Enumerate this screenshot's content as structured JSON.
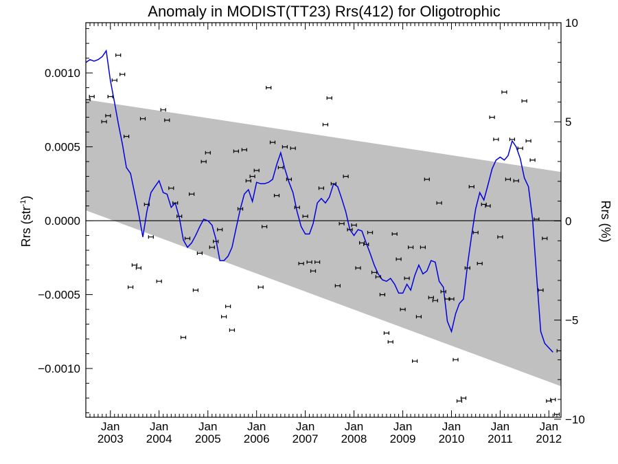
{
  "chart_data": {
    "type": "line",
    "title": "Anomaly in MODIST(TT23) Rrs(412) for Oligotrophic",
    "ylabel": "Rrs (str",
    "ylabel_sup": "-1",
    "ylabel_suffix": ")",
    "ylabel_right": "Rrs (%)",
    "xlabel": "",
    "xlim": [
      "2002-07-01",
      "2012-04-01"
    ],
    "ylim": [
      -0.00133,
      0.00134
    ],
    "ylim_right": [
      -9.9,
      10.0
    ],
    "yticks_left": [
      {
        "value": 0.001,
        "label": "0.0010"
      },
      {
        "value": 0.0005,
        "label": "0.0005"
      },
      {
        "value": 0.0,
        "label": "0.0000"
      },
      {
        "value": -0.0005,
        "label": "−0.0005"
      },
      {
        "value": -0.001,
        "label": "−0.0010"
      }
    ],
    "yticks_right": [
      {
        "value": 10,
        "label": "10"
      },
      {
        "value": 5,
        "label": "5"
      },
      {
        "value": 0,
        "label": "0"
      },
      {
        "value": -5,
        "label": "−5"
      },
      {
        "value": -10,
        "label": "−10"
      }
    ],
    "xticks": [
      {
        "value": "2003-01-01",
        "month": "Jan",
        "year": "2003"
      },
      {
        "value": "2004-01-01",
        "month": "Jan",
        "year": "2004"
      },
      {
        "value": "2005-01-01",
        "month": "Jan",
        "year": "2005"
      },
      {
        "value": "2006-01-01",
        "month": "Jan",
        "year": "2006"
      },
      {
        "value": "2007-01-01",
        "month": "Jan",
        "year": "2007"
      },
      {
        "value": "2008-01-01",
        "month": "Jan",
        "year": "2008"
      },
      {
        "value": "2009-01-01",
        "month": "Jan",
        "year": "2009"
      },
      {
        "value": "2010-01-01",
        "month": "Jan",
        "year": "2010"
      },
      {
        "value": "2011-01-01",
        "month": "Jan",
        "year": "2011"
      },
      {
        "value": "2012-01-01",
        "month": "Jan",
        "year": "2012"
      }
    ],
    "band": {
      "color": "#c0c0c0",
      "start": {
        "x": "2002-07-01",
        "upper": 0.00082,
        "lower": 7e-05
      },
      "end": {
        "x": "2012-04-01",
        "upper": 0.00033,
        "lower": -0.00112
      }
    },
    "zero_line": 0.0,
    "line_color": "#0000dd",
    "marker_color": "#000000",
    "series": [
      {
        "values": [
          [
            "2002-07-01",
            0.00107
          ],
          [
            "2002-08-01",
            0.00109
          ],
          [
            "2002-09-01",
            0.00108
          ],
          [
            "2002-10-01",
            0.00109
          ],
          [
            "2002-11-01",
            0.00111
          ],
          [
            "2002-12-01",
            0.00115
          ],
          [
            "2003-01-01",
            0.00095
          ],
          [
            "2003-02-01",
            0.0008
          ],
          [
            "2003-03-01",
            0.00066
          ],
          [
            "2003-04-01",
            0.00052
          ],
          [
            "2003-05-01",
            0.00036
          ],
          [
            "2003-06-01",
            0.00032
          ],
          [
            "2003-07-01",
            0.00019
          ],
          [
            "2003-08-01",
            5e-05
          ],
          [
            "2003-09-01",
            -0.00011
          ],
          [
            "2003-10-01",
            6e-05
          ],
          [
            "2003-11-01",
            0.00019
          ],
          [
            "2003-12-01",
            0.00023
          ],
          [
            "2004-01-01",
            0.00027
          ],
          [
            "2004-02-01",
            0.00019
          ],
          [
            "2004-03-01",
            0.00018
          ],
          [
            "2004-04-01",
            9e-05
          ],
          [
            "2004-05-01",
            0.00012
          ],
          [
            "2004-06-01",
            2e-05
          ],
          [
            "2004-07-01",
            -0.00013
          ],
          [
            "2004-08-01",
            -0.00018
          ],
          [
            "2004-09-01",
            -0.00015
          ],
          [
            "2004-10-01",
            -0.0001
          ],
          [
            "2004-11-01",
            -4e-05
          ],
          [
            "2004-12-01",
            1e-05
          ],
          [
            "2005-01-01",
            0.0
          ],
          [
            "2005-02-01",
            -3e-05
          ],
          [
            "2005-03-01",
            -0.00012
          ],
          [
            "2005-04-01",
            -0.00027
          ],
          [
            "2005-05-01",
            -0.00027
          ],
          [
            "2005-06-01",
            -0.00024
          ],
          [
            "2005-07-01",
            -0.00018
          ],
          [
            "2005-08-01",
            -5e-05
          ],
          [
            "2005-09-01",
            8e-05
          ],
          [
            "2005-10-01",
            0.00018
          ],
          [
            "2005-11-01",
            0.00021
          ],
          [
            "2005-12-01",
            0.00013
          ],
          [
            "2006-01-01",
            0.00026
          ],
          [
            "2006-02-01",
            0.00025
          ],
          [
            "2006-03-01",
            0.00025
          ],
          [
            "2006-04-01",
            0.00026
          ],
          [
            "2006-05-01",
            0.00028
          ],
          [
            "2006-06-01",
            0.00038
          ],
          [
            "2006-07-01",
            0.00046
          ],
          [
            "2006-08-01",
            0.00035
          ],
          [
            "2006-09-01",
            0.00026
          ],
          [
            "2006-10-01",
            0.00019
          ],
          [
            "2006-11-01",
            6e-05
          ],
          [
            "2006-12-01",
            -4e-05
          ],
          [
            "2007-01-01",
            -9e-05
          ],
          [
            "2007-02-01",
            -9e-05
          ],
          [
            "2007-03-01",
            -2e-05
          ],
          [
            "2007-04-01",
            0.00012
          ],
          [
            "2007-05-01",
            0.00015
          ],
          [
            "2007-06-01",
            0.00012
          ],
          [
            "2007-07-01",
            0.00016
          ],
          [
            "2007-08-01",
            0.00025
          ],
          [
            "2007-09-01",
            0.00023
          ],
          [
            "2007-10-01",
            0.00015
          ],
          [
            "2007-11-01",
            6e-05
          ],
          [
            "2007-12-01",
            -6e-05
          ],
          [
            "2008-01-01",
            -0.0001
          ],
          [
            "2008-02-01",
            -6e-05
          ],
          [
            "2008-03-01",
            -7e-05
          ],
          [
            "2008-04-01",
            -0.00015
          ],
          [
            "2008-05-01",
            -0.00022
          ],
          [
            "2008-06-01",
            -0.0003
          ],
          [
            "2008-07-01",
            -0.00036
          ],
          [
            "2008-08-01",
            -0.0004
          ],
          [
            "2008-09-01",
            -0.00041
          ],
          [
            "2008-10-01",
            -0.00039
          ],
          [
            "2008-11-01",
            -0.00043
          ],
          [
            "2008-12-01",
            -0.00049
          ],
          [
            "2009-01-01",
            -0.00049
          ],
          [
            "2009-02-01",
            -0.00043
          ],
          [
            "2009-03-01",
            -0.00047
          ],
          [
            "2009-04-01",
            -0.00037
          ],
          [
            "2009-05-01",
            -0.0003
          ],
          [
            "2009-06-01",
            -0.00036
          ],
          [
            "2009-07-01",
            -0.00034
          ],
          [
            "2009-08-01",
            -0.00027
          ],
          [
            "2009-09-01",
            -0.00028
          ],
          [
            "2009-10-01",
            -0.00041
          ],
          [
            "2009-11-01",
            -0.00045
          ],
          [
            "2009-12-01",
            -0.00068
          ],
          [
            "2010-01-01",
            -0.00075
          ],
          [
            "2010-02-01",
            -0.00063
          ],
          [
            "2010-03-01",
            -0.00056
          ],
          [
            "2010-04-01",
            -0.00053
          ],
          [
            "2010-05-01",
            -0.0003
          ],
          [
            "2010-06-01",
            -0.0001
          ],
          [
            "2010-07-01",
            8e-05
          ],
          [
            "2010-08-01",
            0.00019
          ],
          [
            "2010-09-01",
            0.00014
          ],
          [
            "2010-10-01",
            0.00024
          ],
          [
            "2010-11-01",
            0.00035
          ],
          [
            "2010-12-01",
            0.00041
          ],
          [
            "2011-01-01",
            0.00043
          ],
          [
            "2011-02-01",
            0.00041
          ],
          [
            "2011-03-01",
            0.00044
          ],
          [
            "2011-04-01",
            0.00054
          ],
          [
            "2011-05-01",
            0.0005
          ],
          [
            "2011-06-01",
            0.00042
          ],
          [
            "2011-07-01",
            0.00029
          ],
          [
            "2011-08-01",
            0.00023
          ],
          [
            "2011-09-01",
            1e-05
          ],
          [
            "2011-10-01",
            -0.00037
          ],
          [
            "2011-11-01",
            -0.00075
          ],
          [
            "2011-12-01",
            -0.00083
          ],
          [
            "2012-01-01",
            -0.00086
          ],
          [
            "2012-02-01",
            -0.00089
          ]
        ]
      },
      {
        "type": "scatter",
        "error_bars": true,
        "values": [
          [
            "2002-07-15",
            0.00082
          ],
          [
            "2002-08-15",
            0.00084
          ],
          [
            "2002-11-15",
            0.00067
          ],
          [
            "2002-12-15",
            0.00071
          ],
          [
            "2003-01-01",
            0.00084
          ],
          [
            "2003-02-01",
            0.00095
          ],
          [
            "2003-03-01",
            0.00112
          ],
          [
            "2003-04-01",
            0.00099
          ],
          [
            "2003-05-01",
            0.00057
          ],
          [
            "2003-06-01",
            -0.00045
          ],
          [
            "2003-07-01",
            -0.0003
          ],
          [
            "2003-08-01",
            -0.00032
          ],
          [
            "2003-09-01",
            0.00069
          ],
          [
            "2003-10-01",
            0.00011
          ],
          [
            "2003-11-01",
            -0.00011
          ],
          [
            "2004-01-01",
            -0.00041
          ],
          [
            "2004-02-01",
            0.00075
          ],
          [
            "2004-03-01",
            0.00068
          ],
          [
            "2004-04-01",
            0.00022
          ],
          [
            "2004-05-01",
            0.00012
          ],
          [
            "2004-06-01",
            3e-05
          ],
          [
            "2004-07-01",
            -0.00079
          ],
          [
            "2004-08-01",
            -0.00012
          ],
          [
            "2004-09-01",
            0.00018
          ],
          [
            "2004-10-01",
            -0.00047
          ],
          [
            "2004-11-01",
            -0.00022
          ],
          [
            "2004-12-01",
            0.0004
          ],
          [
            "2005-01-01",
            0.00046
          ],
          [
            "2005-02-01",
            -0.00018
          ],
          [
            "2005-03-01",
            -0.00014
          ],
          [
            "2005-04-01",
            -6e-05
          ],
          [
            "2005-05-01",
            -0.00065
          ],
          [
            "2005-06-01",
            -0.00058
          ],
          [
            "2005-07-01",
            -0.00074
          ],
          [
            "2005-08-01",
            0.00047
          ],
          [
            "2005-09-01",
            8e-05
          ],
          [
            "2005-10-01",
            0.00048
          ],
          [
            "2005-11-01",
            0.00027
          ],
          [
            "2005-12-01",
            0.0003
          ],
          [
            "2006-01-01",
            0.00034
          ],
          [
            "2006-02-01",
            -0.00045
          ],
          [
            "2006-03-01",
            -4e-05
          ],
          [
            "2006-04-01",
            0.0009
          ],
          [
            "2006-05-01",
            0.00053
          ],
          [
            "2006-06-01",
            0.00017
          ],
          [
            "2006-07-01",
            0.00036
          ],
          [
            "2006-08-01",
            0.0005
          ],
          [
            "2006-09-01",
            0.00028
          ],
          [
            "2006-10-01",
            0.00049
          ],
          [
            "2006-11-01",
            9e-05
          ],
          [
            "2006-12-01",
            -0.00029
          ],
          [
            "2007-01-01",
            3e-05
          ],
          [
            "2007-02-01",
            -0.00028
          ],
          [
            "2007-03-01",
            -0.00034
          ],
          [
            "2007-04-01",
            -0.00028
          ],
          [
            "2007-05-01",
            0.00022
          ],
          [
            "2007-06-01",
            0.00065
          ],
          [
            "2007-07-01",
            0.00083
          ],
          [
            "2007-08-01",
            0.00025
          ],
          [
            "2007-09-01",
            -0.00044
          ],
          [
            "2007-10-01",
            -2e-05
          ],
          [
            "2007-11-01",
            0.0003
          ],
          [
            "2007-12-01",
            -6e-05
          ],
          [
            "2008-01-01",
            -3e-05
          ],
          [
            "2008-02-01",
            -0.00032
          ],
          [
            "2008-03-01",
            -0.00015
          ],
          [
            "2008-04-01",
            -0.00016
          ],
          [
            "2008-05-01",
            -8e-05
          ],
          [
            "2008-06-01",
            -0.00035
          ],
          [
            "2008-07-01",
            -0.00038
          ],
          [
            "2008-08-01",
            -0.0005
          ],
          [
            "2008-09-01",
            -0.00076
          ],
          [
            "2008-10-01",
            -0.00082
          ],
          [
            "2008-11-01",
            -9e-05
          ],
          [
            "2008-12-01",
            -0.00026
          ],
          [
            "2009-01-01",
            -0.0006
          ],
          [
            "2009-02-01",
            -0.00039
          ],
          [
            "2009-03-01",
            -0.00018
          ],
          [
            "2009-04-01",
            -0.00095
          ],
          [
            "2009-05-01",
            -0.00065
          ],
          [
            "2009-06-01",
            -0.00018
          ],
          [
            "2009-07-01",
            0.00028
          ],
          [
            "2009-08-01",
            -0.00052
          ],
          [
            "2009-09-01",
            -0.00054
          ],
          [
            "2009-10-01",
            0.00012
          ],
          [
            "2009-11-01",
            -0.00048
          ],
          [
            "2009-12-01",
            -0.00053
          ],
          [
            "2010-01-01",
            -0.00053
          ],
          [
            "2010-02-01",
            -0.00094
          ],
          [
            "2010-03-01",
            -0.00122
          ],
          [
            "2010-04-01",
            -0.0012
          ],
          [
            "2010-05-01",
            -0.00032
          ],
          [
            "2010-06-01",
            0.00023
          ],
          [
            "2010-07-01",
            -8e-05
          ],
          [
            "2010-08-01",
            -0.00029
          ],
          [
            "2010-09-01",
            0.00011
          ],
          [
            "2010-10-01",
            0.0001
          ],
          [
            "2010-11-01",
            0.0007
          ],
          [
            "2010-12-01",
            0.00055
          ],
          [
            "2011-01-01",
            -0.00011
          ],
          [
            "2011-02-01",
            0.00087
          ],
          [
            "2011-03-01",
            0.00028
          ],
          [
            "2011-04-01",
            0.00055
          ],
          [
            "2011-05-01",
            0.00027
          ],
          [
            "2011-06-01",
            0.00049
          ],
          [
            "2011-07-01",
            0.00081
          ],
          [
            "2011-08-01",
            0.00054
          ],
          [
            "2011-09-01",
            0.00041
          ],
          [
            "2011-10-01",
            1e-05
          ],
          [
            "2011-11-01",
            -0.00047
          ],
          [
            "2011-12-01",
            -0.00012
          ],
          [
            "2012-01-01",
            -0.00122
          ],
          [
            "2012-02-01",
            -0.00121
          ],
          [
            "2012-03-01",
            -0.00131
          ],
          [
            "2012-03-20",
            -0.00088
          ]
        ]
      }
    ]
  }
}
